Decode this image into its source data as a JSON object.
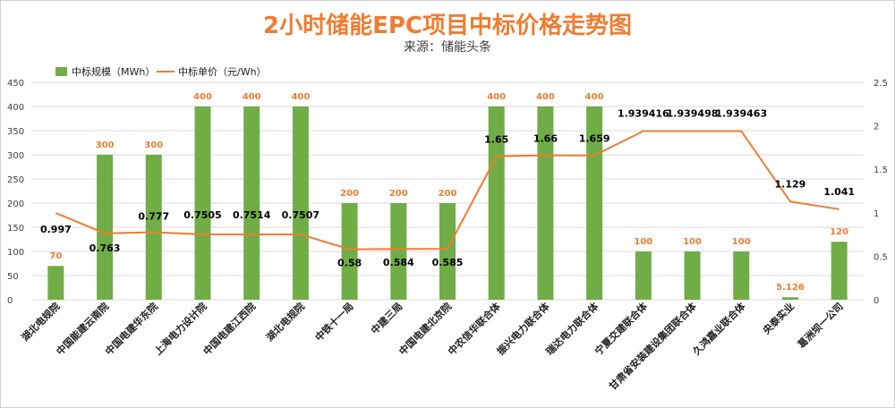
{
  "colors": {
    "bar": "#70AD47",
    "line": "#ED7D31",
    "grid": "#d9d9d9",
    "title": "#ED7D31"
  },
  "chart_data": {
    "type": "bar",
    "title": "2小时储能EPC项目中标价格走势图",
    "subtitle": "来源：储能头条",
    "categories": [
      "湖北电规院",
      "中国能建云南院",
      "中国电建华东院",
      "上海电力设计院",
      "中国电建江西院",
      "湖北电规院",
      "中铁十一局",
      "中建三局",
      "中国电建北京院",
      "中农信华联合体",
      "振兴电力联合体",
      "瑞达电力联合体",
      "宁夏交建联合体",
      "甘肃省安装建设集团联合体",
      "久鸿嘉业联合体",
      "央泰实业",
      "葛洲坝一公司"
    ],
    "series": [
      {
        "name": "中标规模（MWh）",
        "type": "bar",
        "axis": "left",
        "values": [
          70,
          300,
          300,
          400,
          400,
          400,
          200,
          200,
          200,
          400,
          400,
          400,
          100,
          100,
          100,
          5.126,
          120
        ],
        "labels": [
          "70",
          "300",
          "300",
          "400",
          "400",
          "400",
          "200",
          "200",
          "200",
          "400",
          "400",
          "400",
          "100",
          "100",
          "100",
          "5.126",
          "120"
        ]
      },
      {
        "name": "中标单价（元/Wh）",
        "type": "line",
        "axis": "right",
        "values": [
          0.997,
          0.763,
          0.777,
          0.7505,
          0.7514,
          0.7507,
          0.58,
          0.584,
          0.585,
          1.65,
          1.66,
          1.659,
          1.939416,
          1.939498,
          1.939463,
          1.129,
          1.041
        ],
        "labels": [
          "0.997",
          "0.763",
          "0.777",
          "0.7505",
          "0.7514",
          "0.7507",
          "0.58",
          "0.584",
          "0.585",
          "1.65",
          "1.66",
          "1.659",
          "1.939416",
          "1.939498",
          "1.939463",
          "1.129",
          "1.041"
        ]
      }
    ],
    "left_axis": {
      "min": 0,
      "max": 450,
      "ticks": [
        "0",
        "50",
        "100",
        "150",
        "200",
        "250",
        "300",
        "350",
        "400",
        "450"
      ]
    },
    "right_axis": {
      "min": 0,
      "max": 2.5,
      "ticks": [
        "0",
        "0.5",
        "1",
        "1.5",
        "2",
        "2.5"
      ]
    },
    "grid": true,
    "legend_position": "top-left"
  }
}
